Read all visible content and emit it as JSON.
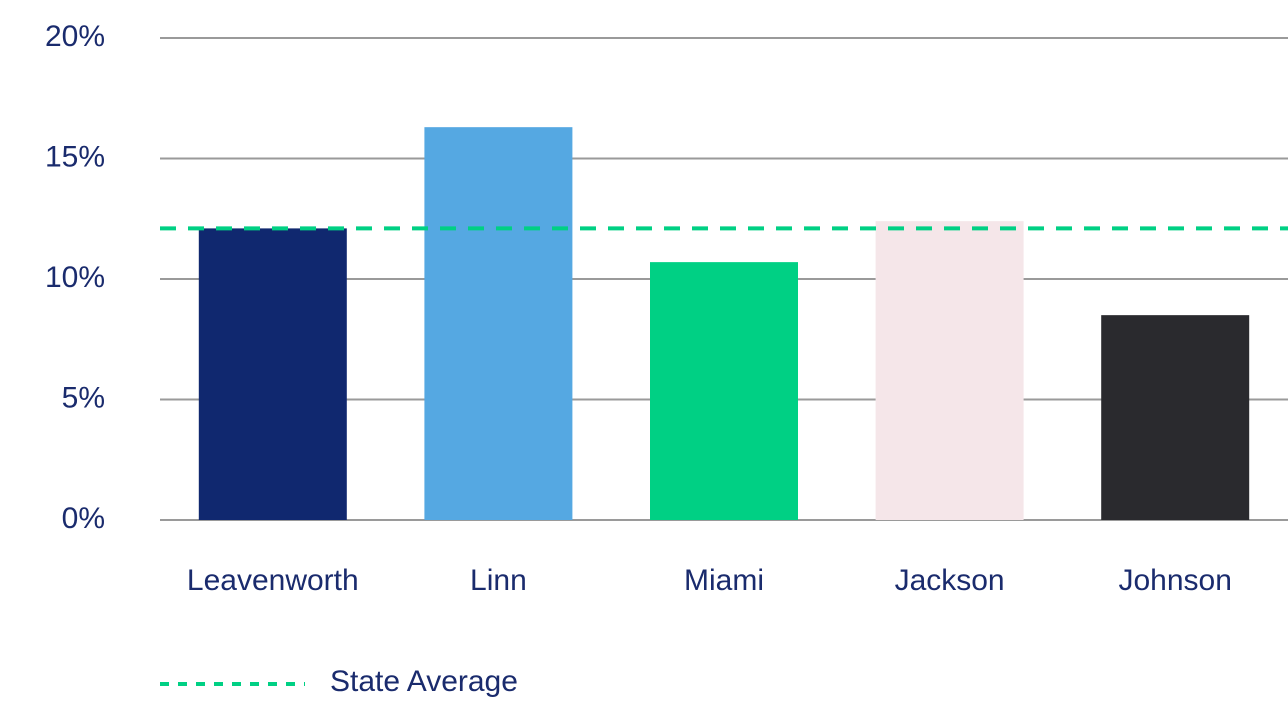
{
  "chart_data": {
    "type": "bar",
    "categories": [
      "Leavenworth",
      "Linn",
      "Miami",
      "Jackson",
      "Johnson"
    ],
    "values": [
      12.1,
      16.3,
      10.7,
      12.4,
      8.5
    ],
    "colors": [
      "#10286f",
      "#55a8e2",
      "#00d084",
      "#f5e6e9",
      "#2a2a2e"
    ],
    "ylim": [
      0,
      20
    ],
    "yticks": [
      {
        "value": 0,
        "label": "0%"
      },
      {
        "value": 5,
        "label": "5%"
      },
      {
        "value": 10,
        "label": "10%"
      },
      {
        "value": 15,
        "label": "15%"
      },
      {
        "value": 20,
        "label": "20%"
      }
    ],
    "grid": true,
    "reference_line": {
      "name": "State Average",
      "value": 12.1,
      "color": "#00d084",
      "style": "dashed"
    },
    "legend": "bottom-left"
  }
}
